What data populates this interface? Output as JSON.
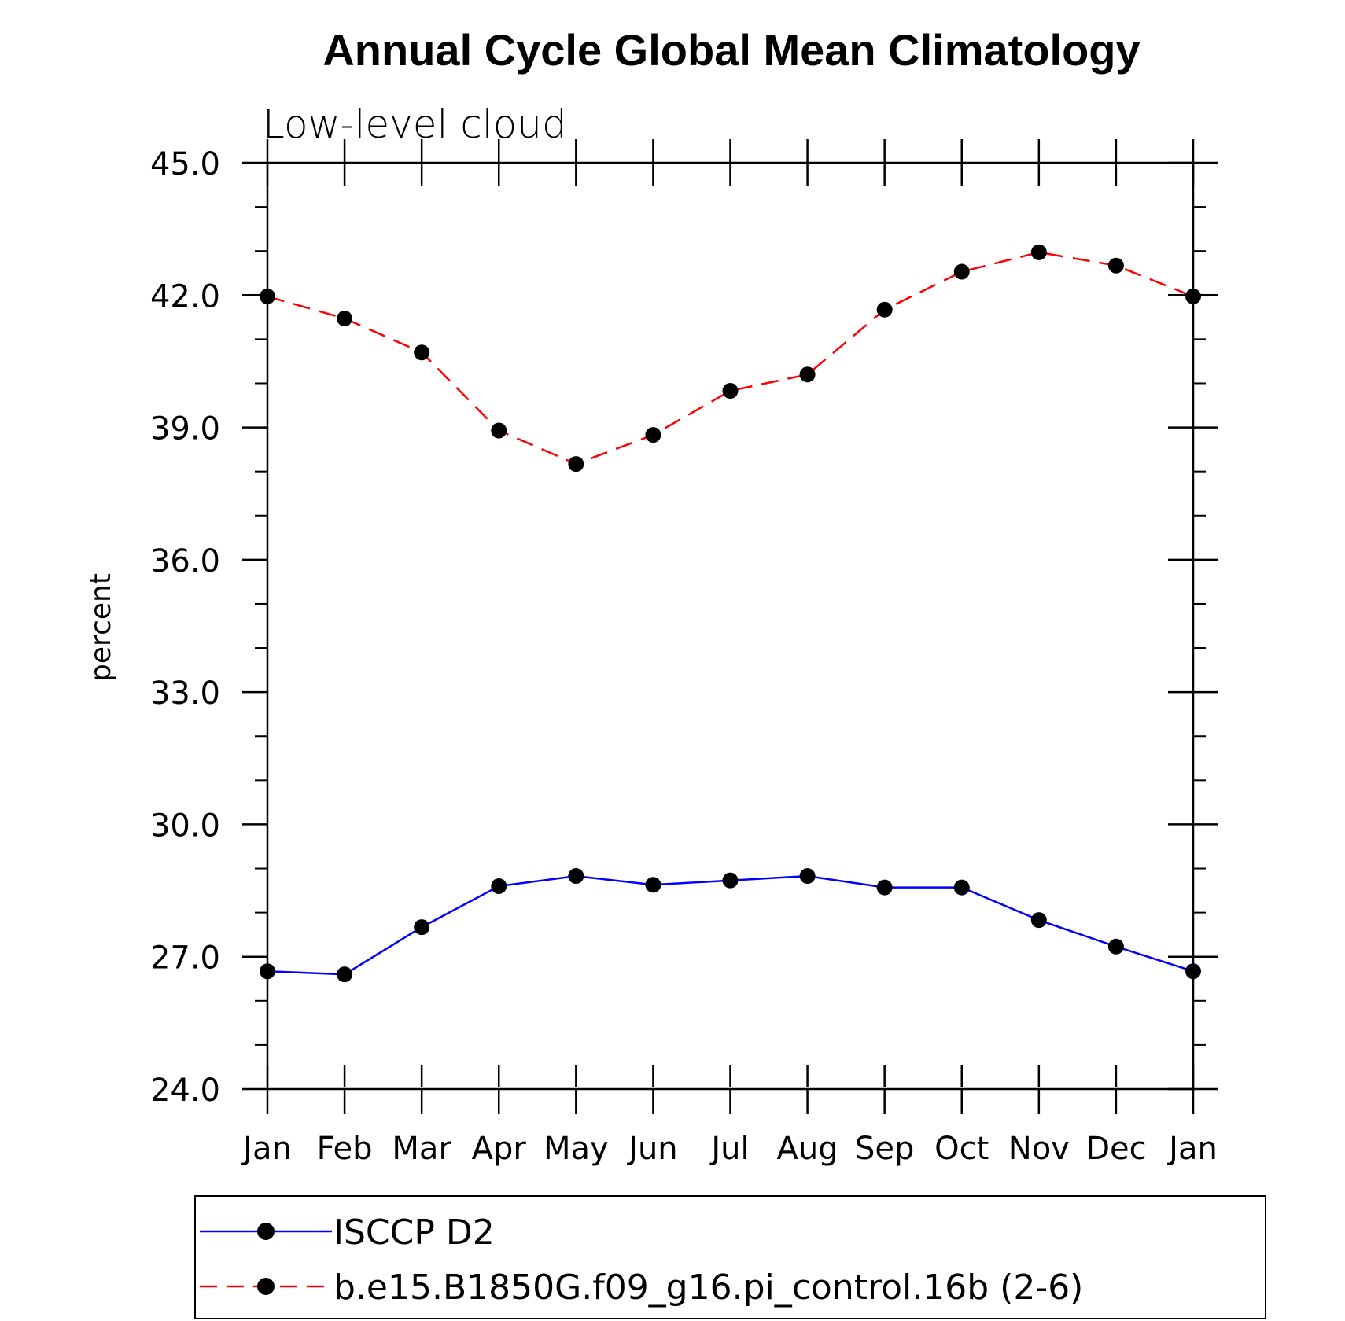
{
  "chart_data": {
    "type": "line",
    "title": "Annual Cycle Global Mean Climatology",
    "subtitle": "Low-level cloud",
    "xlabel": "",
    "ylabel": "percent",
    "categories": [
      "Jan",
      "Feb",
      "Mar",
      "Apr",
      "May",
      "Jun",
      "Jul",
      "Aug",
      "Sep",
      "Oct",
      "Nov",
      "Dec",
      "Jan"
    ],
    "ylim": [
      24.0,
      45.0
    ],
    "yticks": [
      24.0,
      27.0,
      30.0,
      33.0,
      36.0,
      39.0,
      42.0,
      45.0
    ],
    "ytick_labels": [
      "24.0",
      "27.0",
      "30.0",
      "33.0",
      "36.0",
      "39.0",
      "42.0",
      "45.0"
    ],
    "yminor_step": 1.0,
    "legend_position": "bottom",
    "series": [
      {
        "name": "ISCCP D2",
        "color": "#0000ff",
        "dash": "solid",
        "marker": "filled-circle",
        "values": [
          26.67,
          26.6,
          27.67,
          28.6,
          28.83,
          28.63,
          28.73,
          28.83,
          28.57,
          28.57,
          27.83,
          27.23,
          26.67
        ]
      },
      {
        "name": "b.e15.B1850G.f09_g16.pi_control.16b (2-6)",
        "color": "#ff0000",
        "dash": "dashed",
        "marker": "filled-circle",
        "values": [
          41.97,
          41.47,
          40.7,
          38.93,
          38.17,
          38.83,
          39.83,
          40.2,
          41.67,
          42.53,
          42.97,
          42.67,
          41.97
        ]
      }
    ]
  }
}
